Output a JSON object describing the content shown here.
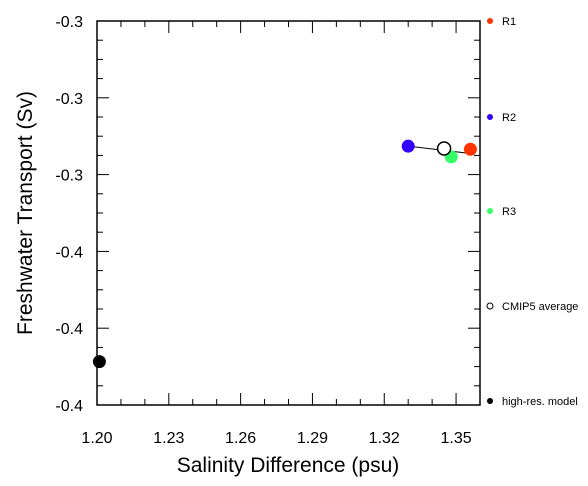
{
  "chart_data": {
    "type": "scatter",
    "xlabel": "Salinity Difference (psu)",
    "ylabel": "Freshwater Transport (Sv)",
    "xlim": [
      1.2,
      1.36
    ],
    "ylim": [
      -0.4,
      -0.3
    ],
    "x_ticks": [
      1.2,
      1.23,
      1.26,
      1.29,
      1.32,
      1.35
    ],
    "x_tick_labels": [
      "1.20",
      "1.23",
      "1.26",
      "1.29",
      "1.32",
      "1.35"
    ],
    "y_ticks": [
      -0.3,
      -0.32,
      -0.34,
      -0.36,
      -0.38,
      -0.4
    ],
    "y_tick_labels": [
      "-0.3",
      "-0.3",
      "-0.3",
      "-0.4",
      "-0.4",
      "-0.4"
    ],
    "grid": false,
    "legend_position": "right",
    "series": [
      {
        "name": "R1",
        "color": "#ff3300",
        "filled": true,
        "x": 1.356,
        "y": -0.3334
      },
      {
        "name": "R2",
        "color": "#3300ff",
        "filled": true,
        "x": 1.33,
        "y": -0.3326
      },
      {
        "name": "R3",
        "color": "#33ff66",
        "filled": true,
        "x": 1.348,
        "y": -0.3354
      },
      {
        "name": "CMIP5 average",
        "color": "#000000",
        "filled": false,
        "x": 1.345,
        "y": -0.3332
      },
      {
        "name": "high-res. model",
        "color": "#000000",
        "filled": true,
        "x": 1.201,
        "y": -0.3887
      }
    ],
    "fit_line": {
      "x1": 1.33,
      "y1": -0.3326,
      "x2": 1.356,
      "y2": -0.3345
    }
  }
}
